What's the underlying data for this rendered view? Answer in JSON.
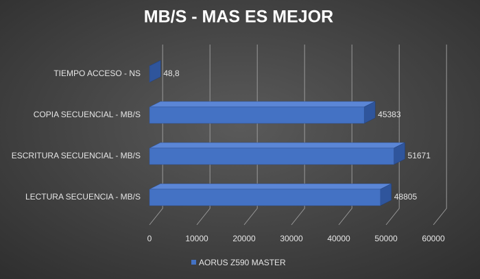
{
  "chart_data": {
    "type": "bar3d_horizontal",
    "title": "MB/S - MAS ES MEJOR",
    "categories": [
      "TIEMPO ACCESO - NS",
      "COPIA SECUENCIAL - MB/S",
      "ESCRITURA SECUENCIAL - MB/S",
      "LECTURA SECUENCIA - MB/S"
    ],
    "series": [
      {
        "name": "AORUS Z590 MASTER",
        "color": "#4472c4",
        "values": [
          48.8,
          45383,
          51671,
          48805
        ],
        "value_labels": [
          "48,8",
          "45383",
          "51671",
          "48805"
        ]
      }
    ],
    "xlim": [
      0,
      60000
    ],
    "xticks": [
      0,
      10000,
      20000,
      30000,
      40000,
      50000,
      60000
    ],
    "grid": true,
    "legend": "bottom"
  }
}
